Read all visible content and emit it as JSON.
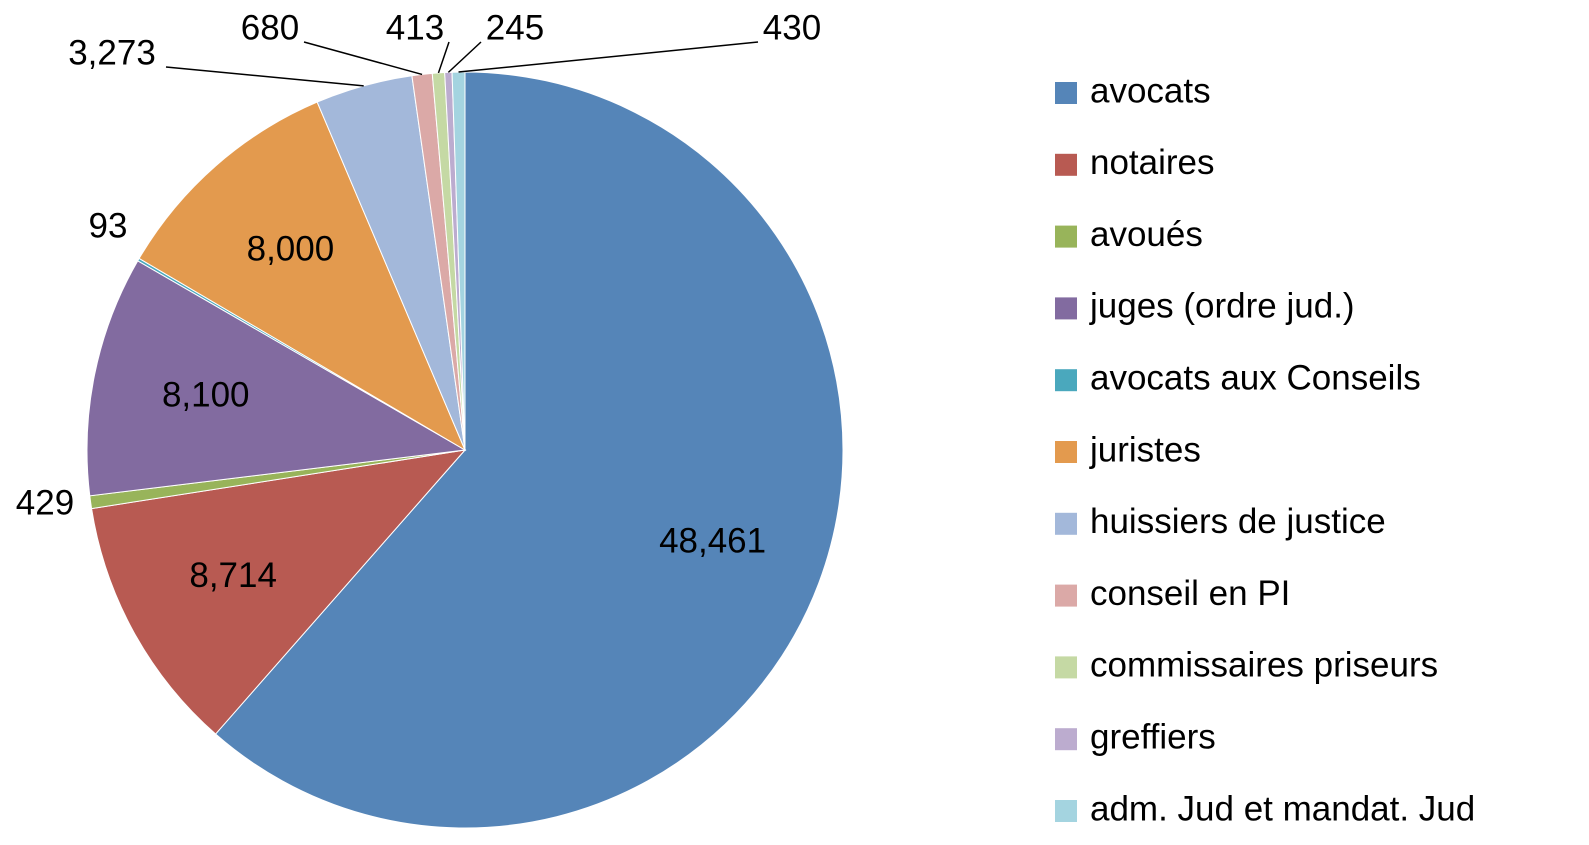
{
  "chart_data": {
    "type": "pie",
    "categories": [
      "avocats",
      "notaires",
      "avoués",
      "juges (ordre jud.)",
      "avocats aux Conseils",
      "juristes",
      "huissiers de justice",
      "conseil en PI",
      "commissaires priseurs",
      "greffiers",
      "adm. Jud et mandat. Jud"
    ],
    "values": [
      48461,
      8714,
      429,
      8100,
      93,
      8000,
      3273,
      680,
      413,
      245,
      430
    ],
    "value_labels": [
      "48,461",
      "8,714",
      "429",
      "8,100",
      "93",
      "8,000",
      "3,273",
      "680",
      "413",
      "245",
      "430"
    ],
    "colors": [
      "#5585b8",
      "#b85a52",
      "#98b45a",
      "#826ba0",
      "#4aa8bd",
      "#e39a4e",
      "#a3b8da",
      "#dba9a7",
      "#c5d9a4",
      "#bcaccf",
      "#a4d4e0"
    ],
    "legend": "right"
  }
}
